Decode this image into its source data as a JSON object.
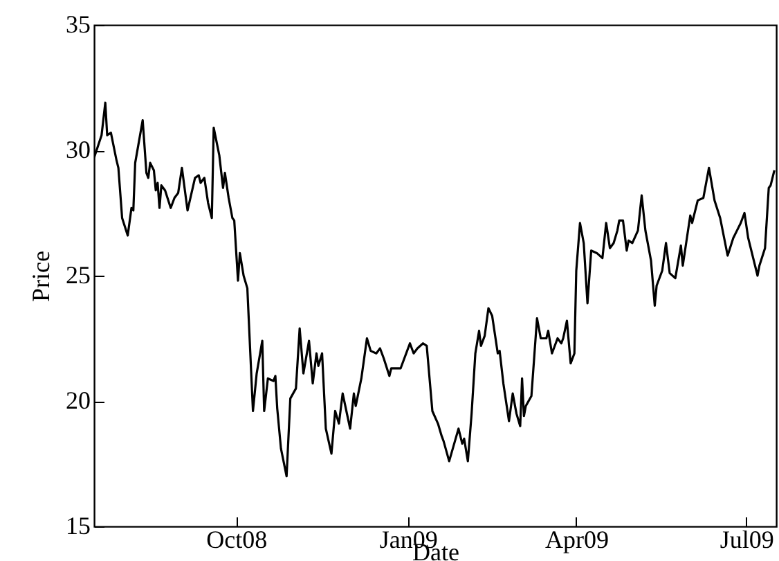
{
  "chart_data": {
    "type": "line",
    "xlabel": "Date",
    "ylabel": "Price",
    "x": [
      "2008-07-17",
      "2008-07-21",
      "2008-07-23",
      "2008-07-24",
      "2008-07-26",
      "2008-07-29",
      "2008-07-30",
      "2008-08-01",
      "2008-08-04",
      "2008-08-06",
      "2008-08-07",
      "2008-08-08",
      "2008-08-12",
      "2008-08-14",
      "2008-08-15",
      "2008-08-16",
      "2008-08-18",
      "2008-08-19",
      "2008-08-20",
      "2008-08-21",
      "2008-08-22",
      "2008-08-24",
      "2008-08-27",
      "2008-08-29",
      "2008-08-31",
      "2008-09-02",
      "2008-09-05",
      "2008-09-09",
      "2008-09-11",
      "2008-09-12",
      "2008-09-14",
      "2008-09-16",
      "2008-09-18",
      "2008-09-19",
      "2008-09-22",
      "2008-09-24",
      "2008-09-25",
      "2008-09-27",
      "2008-09-29",
      "2008-09-30",
      "2008-10-02",
      "2008-10-03",
      "2008-10-05",
      "2008-10-07",
      "2008-10-10",
      "2008-10-12",
      "2008-10-15",
      "2008-10-16",
      "2008-10-18",
      "2008-10-21",
      "2008-10-22",
      "2008-10-23",
      "2008-10-25",
      "2008-10-28",
      "2008-10-30",
      "2008-11-02",
      "2008-11-04",
      "2008-11-06",
      "2008-11-09",
      "2008-11-11",
      "2008-11-13",
      "2008-11-14",
      "2008-11-16",
      "2008-11-18",
      "2008-11-21",
      "2008-11-23",
      "2008-11-25",
      "2008-11-27",
      "2008-12-01",
      "2008-12-03",
      "2008-12-04",
      "2008-12-07",
      "2008-12-10",
      "2008-12-12",
      "2008-12-15",
      "2008-12-17",
      "2008-12-19",
      "2008-12-22",
      "2008-12-23",
      "2008-12-28",
      "2009-01-02",
      "2009-01-04",
      "2009-01-06",
      "2009-01-09",
      "2009-01-11",
      "2009-01-14",
      "2009-01-17",
      "2009-01-19",
      "2009-01-20",
      "2009-01-23",
      "2009-01-28",
      "2009-01-30",
      "2009-01-31",
      "2009-02-02",
      "2009-02-04",
      "2009-02-06",
      "2009-02-08",
      "2009-02-09",
      "2009-02-11",
      "2009-02-13",
      "2009-02-15",
      "2009-02-18",
      "2009-02-19",
      "2009-02-21",
      "2009-02-24",
      "2009-02-26",
      "2009-02-28",
      "2009-03-02",
      "2009-03-03",
      "2009-03-04",
      "2009-03-05",
      "2009-03-08",
      "2009-03-11",
      "2009-03-13",
      "2009-03-16",
      "2009-03-17",
      "2009-03-19",
      "2009-03-22",
      "2009-03-24",
      "2009-03-25",
      "2009-03-27",
      "2009-03-29",
      "2009-03-31",
      "2009-04-01",
      "2009-04-03",
      "2009-04-05",
      "2009-04-07",
      "2009-04-09",
      "2009-04-12",
      "2009-04-15",
      "2009-04-17",
      "2009-04-19",
      "2009-04-21",
      "2009-04-23",
      "2009-04-24",
      "2009-04-26",
      "2009-04-28",
      "2009-04-29",
      "2009-05-01",
      "2009-05-04",
      "2009-05-06",
      "2009-05-08",
      "2009-05-11",
      "2009-05-13",
      "2009-05-14",
      "2009-05-17",
      "2009-05-19",
      "2009-05-21",
      "2009-05-24",
      "2009-05-27",
      "2009-05-28",
      "2009-06-01",
      "2009-06-02",
      "2009-06-05",
      "2009-06-08",
      "2009-06-11",
      "2009-06-14",
      "2009-06-17",
      "2009-06-21",
      "2009-06-24",
      "2009-06-26",
      "2009-06-28",
      "2009-06-30",
      "2009-07-02",
      "2009-07-07",
      "2009-07-08",
      "2009-07-11",
      "2009-07-13",
      "2009-07-14",
      "2009-07-16"
    ],
    "series": [
      {
        "color": "#000000",
        "values": [
          29.7,
          30.6,
          31.9,
          30.6,
          30.7,
          29.6,
          29.3,
          27.3,
          26.6,
          27.7,
          27.6,
          29.5,
          31.2,
          29.1,
          28.9,
          29.5,
          29.2,
          28.4,
          28.7,
          27.7,
          28.6,
          28.4,
          27.7,
          28.1,
          28.3,
          29.3,
          27.6,
          28.9,
          29.0,
          28.7,
          28.9,
          27.9,
          27.3,
          30.9,
          29.8,
          28.5,
          29.1,
          28.1,
          27.3,
          27.2,
          24.8,
          25.9,
          25.0,
          24.5,
          19.6,
          21.1,
          22.4,
          19.6,
          20.9,
          20.8,
          21.0,
          19.7,
          18.1,
          17.0,
          20.1,
          20.5,
          22.9,
          21.1,
          22.4,
          20.7,
          21.9,
          21.4,
          21.9,
          18.9,
          17.9,
          19.6,
          19.1,
          20.3,
          18.9,
          20.3,
          19.8,
          20.9,
          22.5,
          22.0,
          21.9,
          22.1,
          21.7,
          21.0,
          21.3,
          21.3,
          22.3,
          21.9,
          22.1,
          22.3,
          22.2,
          19.6,
          19.1,
          18.6,
          18.4,
          17.6,
          18.9,
          18.3,
          18.5,
          17.6,
          19.5,
          21.9,
          22.8,
          22.2,
          22.6,
          23.7,
          23.4,
          21.9,
          22.0,
          20.7,
          19.2,
          20.3,
          19.5,
          19.0,
          20.9,
          19.4,
          19.8,
          20.2,
          23.3,
          22.5,
          22.5,
          22.8,
          21.9,
          22.5,
          22.3,
          22.5,
          23.2,
          21.5,
          21.9,
          25.2,
          27.1,
          26.3,
          23.9,
          26.0,
          25.9,
          25.7,
          27.1,
          26.1,
          26.3,
          26.8,
          27.2,
          27.2,
          26.0,
          26.4,
          26.3,
          26.8,
          28.2,
          26.8,
          25.6,
          23.8,
          24.6,
          25.2,
          26.3,
          25.1,
          24.9,
          26.2,
          25.4,
          27.4,
          27.1,
          28.0,
          28.1,
          29.3,
          28.0,
          27.3,
          25.8,
          26.5,
          26.8,
          27.1,
          27.5,
          26.5,
          25.0,
          25.4,
          26.1,
          28.5,
          28.6,
          29.2
        ]
      }
    ],
    "xlim": [
      "2008-07-17",
      "2009-07-17"
    ],
    "xticks": [
      {
        "value": "2008-10-01",
        "label": "Oct08"
      },
      {
        "value": "2009-01-01",
        "label": "Jan09"
      },
      {
        "value": "2009-04-01",
        "label": "Apr09"
      },
      {
        "value": "2009-07-01",
        "label": "Jul09"
      }
    ],
    "ylim": [
      15,
      35
    ],
    "yticks": [
      15,
      20,
      25,
      30,
      35
    ],
    "grid": false
  }
}
